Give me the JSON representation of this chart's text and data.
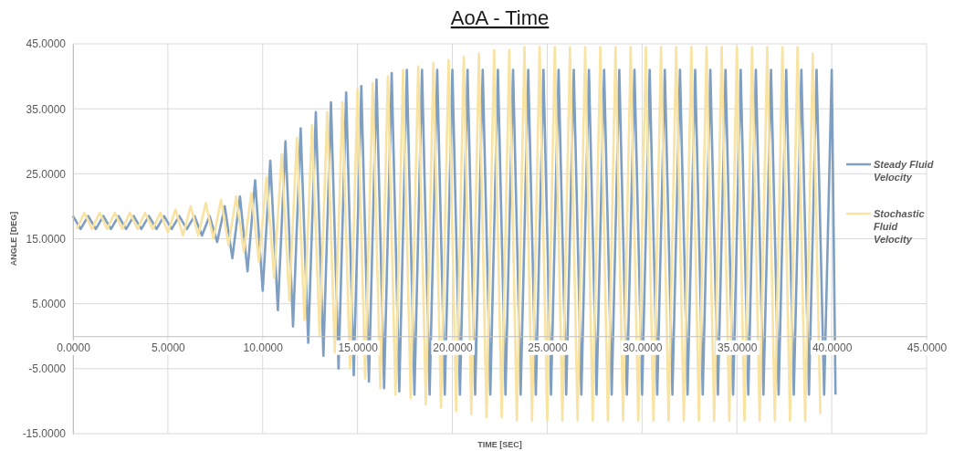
{
  "chart_data": {
    "type": "line",
    "title": "AoA - Time",
    "xlabel": "TIME [SEC]",
    "ylabel": "ANGLE [DEG]",
    "xlim": [
      0,
      45
    ],
    "ylim": [
      -15,
      45
    ],
    "xticks": [
      {
        "value": 0,
        "label": "0.0000"
      },
      {
        "value": 5,
        "label": "5.0000"
      },
      {
        "value": 10,
        "label": "10.0000"
      },
      {
        "value": 15,
        "label": "15.0000"
      },
      {
        "value": 20,
        "label": "20.0000"
      },
      {
        "value": 25,
        "label": "25.0000"
      },
      {
        "value": 30,
        "label": "30.0000"
      },
      {
        "value": 35,
        "label": "35.0000"
      },
      {
        "value": 40,
        "label": "40.0000"
      },
      {
        "value": 45,
        "label": "45.0000"
      }
    ],
    "yticks": [
      {
        "value": -15,
        "label": "-15.0000"
      },
      {
        "value": -5,
        "label": "-5.0000"
      },
      {
        "value": 5,
        "label": "5.0000"
      },
      {
        "value": 15,
        "label": "15.0000"
      },
      {
        "value": 25,
        "label": "25.0000"
      },
      {
        "value": 35,
        "label": "35.0000"
      },
      {
        "value": 45,
        "label": "45.0000"
      }
    ],
    "grid": true,
    "legend": "right",
    "marker": "none",
    "line_style": "solid",
    "series": [
      {
        "name": "Steady Fluid Velocity",
        "color": "#7f9fc2",
        "x": [
          0,
          0.4,
          0.8,
          1.2,
          1.6,
          2,
          2.4,
          2.8,
          3.2,
          3.6,
          4,
          4.4,
          4.8,
          5.2,
          5.6,
          6,
          6.4,
          6.8,
          7.2,
          7.6,
          8,
          8.4,
          8.8,
          9.2,
          9.6,
          10,
          10.4,
          10.8,
          11.2,
          11.6,
          12,
          12.4,
          12.8,
          13.2,
          13.6,
          14,
          14.4,
          14.8,
          15.2,
          15.6,
          16,
          16.4,
          16.8,
          17.2,
          17.6,
          18,
          18.4,
          18.8,
          19.2,
          19.6,
          20,
          20.4,
          20.8,
          21.2,
          21.6,
          22,
          22.4,
          22.8,
          23.2,
          23.6,
          24,
          24.4,
          24.8,
          25.2,
          25.6,
          26,
          26.4,
          26.8,
          27.2,
          27.6,
          28,
          28.4,
          28.8,
          29.2,
          29.6,
          30,
          30.4,
          30.8,
          31.2,
          31.6,
          32,
          32.4,
          32.8,
          33.2,
          33.6,
          34,
          34.4,
          34.8,
          35.2,
          35.6,
          36,
          36.4,
          36.8,
          37.2,
          37.6,
          38,
          38.4,
          38.8,
          39.2,
          39.6,
          40,
          40.2
        ],
        "values": [
          18.5,
          16.5,
          18.5,
          16.5,
          18.5,
          16.5,
          18.5,
          16.5,
          18.5,
          16.5,
          18.5,
          16.5,
          18.5,
          16.5,
          18.5,
          16.5,
          18.5,
          15.5,
          18.5,
          14.5,
          20,
          12,
          21.5,
          10,
          24,
          7,
          27,
          4,
          30,
          1.5,
          32,
          -1,
          34.5,
          -3,
          36,
          -5,
          37.5,
          -6,
          38.5,
          -7,
          39.5,
          -8,
          40.5,
          -8.5,
          41,
          -9,
          41,
          -9,
          41,
          -9,
          41,
          -9,
          41,
          -9,
          41,
          -9,
          41,
          -9,
          41,
          -9,
          41,
          -9,
          41,
          -9,
          41,
          -9,
          41,
          -9,
          41,
          -9,
          41,
          -9,
          41,
          -9,
          41,
          -9,
          41,
          -9,
          41,
          -9,
          41,
          -9,
          41,
          -9,
          41,
          -9,
          41,
          -9,
          41,
          -9,
          41,
          -9,
          41,
          -9,
          41,
          -9,
          41,
          -9,
          41,
          -9,
          41,
          -9
        ]
      },
      {
        "name": "Stochastic Fluid Velocity",
        "color": "#f8e3a3",
        "x": [
          0.2,
          0.6,
          1,
          1.4,
          1.8,
          2.2,
          2.6,
          3,
          3.4,
          3.8,
          4.2,
          4.6,
          5,
          5.4,
          5.8,
          6.2,
          6.6,
          7,
          7.4,
          7.8,
          8.2,
          8.6,
          9,
          9.4,
          9.8,
          10.2,
          10.6,
          11,
          11.4,
          11.8,
          12.2,
          12.6,
          13,
          13.4,
          13.8,
          14.2,
          14.6,
          15,
          15.4,
          15.8,
          16.2,
          16.6,
          17,
          17.4,
          17.8,
          18.2,
          18.6,
          19,
          19.4,
          19.8,
          20.2,
          20.6,
          21,
          21.4,
          21.8,
          22.2,
          22.6,
          23,
          23.4,
          23.8,
          24.2,
          24.6,
          25,
          25.4,
          25.8,
          26.2,
          26.6,
          27,
          27.4,
          27.8,
          28.2,
          28.6,
          29,
          29.4,
          29.8,
          30.2,
          30.6,
          31,
          31.4,
          31.8,
          32.2,
          32.6,
          33,
          33.4,
          33.8,
          34.2,
          34.6,
          35,
          35.4,
          35.8,
          36.2,
          36.6,
          37,
          37.4,
          37.8,
          38.2,
          38.6,
          39,
          39.4
        ],
        "values": [
          16.5,
          19,
          16.5,
          19,
          16.5,
          19,
          16.5,
          19,
          16.5,
          19,
          16.5,
          19,
          16,
          19.5,
          15.5,
          20,
          15.5,
          20.5,
          15,
          21,
          14,
          21.5,
          13,
          22,
          11.5,
          24.5,
          9,
          28,
          5.5,
          30.5,
          2.5,
          32.5,
          0,
          34.5,
          -2.5,
          36,
          -5,
          38,
          -6.5,
          39,
          -8,
          40,
          -9,
          41,
          -9.5,
          41.5,
          -10.5,
          42,
          -11,
          42.5,
          -11.5,
          43,
          -12,
          43.5,
          -12.5,
          44,
          -12.5,
          44,
          -13,
          44.5,
          -13,
          44.5,
          -13,
          44.5,
          -13,
          44.5,
          -13,
          44.5,
          -13,
          44.5,
          -13,
          44.5,
          -13,
          44.5,
          -13,
          44.5,
          -13,
          44.5,
          -13,
          44.5,
          -13,
          44.5,
          -13,
          44.5,
          -13,
          44.5,
          -13,
          44.5,
          -13,
          44.5,
          -13,
          44.5,
          -13,
          44.5,
          -13,
          44.5,
          -13,
          43.5,
          -12
        ]
      }
    ]
  }
}
